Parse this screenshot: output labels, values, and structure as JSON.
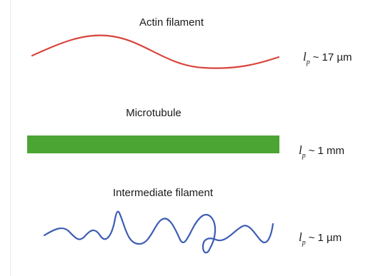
{
  "colors": {
    "actin": "#d9453d",
    "microtubule": "#4aa532",
    "intermediate": "#3d5db3"
  },
  "filaments": [
    {
      "title": "Actin filament",
      "persistence_symbol": "l",
      "persistence_subscript": "p",
      "approx": "~",
      "value": "17 µm"
    },
    {
      "title": "Microtubule",
      "persistence_symbol": "l",
      "persistence_subscript": "p",
      "approx": "~",
      "value": "1 mm"
    },
    {
      "title": "Intermediate filament",
      "persistence_symbol": "l",
      "persistence_subscript": "p",
      "approx": "~",
      "value": "1 µm"
    }
  ]
}
